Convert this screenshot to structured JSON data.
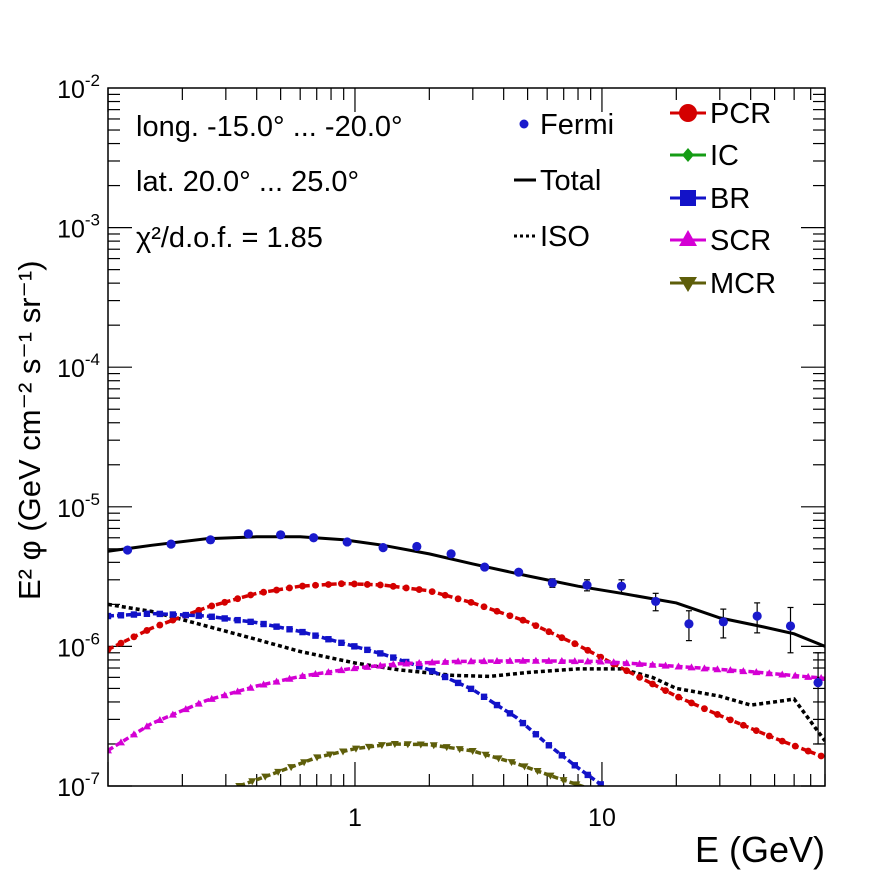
{
  "chart_data": {
    "type": "line",
    "title": "",
    "xlabel": "E (GeV)",
    "ylabel": "E² φ (GeV cm⁻² s⁻¹ sr⁻¹)",
    "xscale": "log",
    "yscale": "log",
    "xlim": [
      0.1,
      80
    ],
    "ylim": [
      1e-07,
      0.01
    ],
    "x_ticks": [
      {
        "value": 1,
        "label": "1"
      },
      {
        "value": 10,
        "label": "10"
      }
    ],
    "y_ticks": [
      {
        "value": 1e-07,
        "base": "10",
        "exp": "-7"
      },
      {
        "value": 1e-06,
        "base": "10",
        "exp": "-6"
      },
      {
        "value": 1e-05,
        "base": "10",
        "exp": "-5"
      },
      {
        "value": 0.0001,
        "base": "10",
        "exp": "-4"
      },
      {
        "value": 0.001,
        "base": "10",
        "exp": "-3"
      },
      {
        "value": 0.01,
        "base": "10",
        "exp": "-2"
      }
    ],
    "annotations": [
      {
        "id": "longitude",
        "text": "long. -15.0° ... -20.0°"
      },
      {
        "id": "latitude",
        "text": "lat. 20.0° ... 25.0°"
      },
      {
        "id": "chi2",
        "text": "χ²/d.o.f. = 1.85"
      }
    ],
    "legend": {
      "placement": "top-right",
      "entries": [
        {
          "label": "Fermi",
          "marker": "circle",
          "color": "#1a1acc"
        },
        {
          "label": "Total",
          "style": "solid",
          "color": "#000000"
        },
        {
          "label": "ISO",
          "style": "dotted",
          "color": "#000000"
        },
        {
          "label": "PCR",
          "marker": "circle",
          "color": "#d40000"
        },
        {
          "label": "IC",
          "marker": "diamond",
          "color": "#159c15"
        },
        {
          "label": "BR",
          "marker": "square",
          "color": "#1212c8"
        },
        {
          "label": "SCR",
          "marker": "triangle-up",
          "color": "#d400d4"
        },
        {
          "label": "MCR",
          "marker": "triangle-down",
          "color": "#5e5e0a"
        }
      ]
    },
    "fermi": {
      "name": "Fermi",
      "color": "#1a1acc",
      "points": [
        {
          "x": 0.12,
          "y": 4.9e-06,
          "err": 1e-07
        },
        {
          "x": 0.18,
          "y": 5.4e-06,
          "err": 1e-07
        },
        {
          "x": 0.26,
          "y": 5.8e-06,
          "err": 1e-07
        },
        {
          "x": 0.37,
          "y": 6.4e-06,
          "err": 1e-07
        },
        {
          "x": 0.5,
          "y": 6.3e-06,
          "err": 1e-07
        },
        {
          "x": 0.68,
          "y": 6e-06,
          "err": 1e-07
        },
        {
          "x": 0.93,
          "y": 5.6e-06,
          "err": 1e-07
        },
        {
          "x": 1.3,
          "y": 5.1e-06,
          "err": 1e-07
        },
        {
          "x": 1.78,
          "y": 5.2e-06,
          "err": 1e-07
        },
        {
          "x": 2.45,
          "y": 4.6e-06,
          "err": 1e-07
        },
        {
          "x": 3.35,
          "y": 3.7e-06,
          "err": 1e-07
        },
        {
          "x": 4.6,
          "y": 3.4e-06,
          "err": 1e-07
        },
        {
          "x": 6.3,
          "y": 2.85e-06,
          "err": 2e-07
        },
        {
          "x": 8.7,
          "y": 2.75e-06,
          "err": 2.5e-07
        },
        {
          "x": 12.0,
          "y": 2.7e-06,
          "err": 3e-07
        },
        {
          "x": 16.5,
          "y": 2.1e-06,
          "err": 3e-07
        },
        {
          "x": 22.5,
          "y": 1.45e-06,
          "err": 3.5e-07
        },
        {
          "x": 31.0,
          "y": 1.5e-06,
          "err": 3.5e-07
        },
        {
          "x": 42.5,
          "y": 1.65e-06,
          "err": 4e-07
        },
        {
          "x": 58.0,
          "y": 1.4e-06,
          "err": 5e-07
        },
        {
          "x": 75.0,
          "y": 5.5e-07,
          "err": 3.5e-07
        }
      ]
    },
    "series": [
      {
        "name": "Total",
        "color": "#000000",
        "style": "solid",
        "marker": "none",
        "x": [
          0.1,
          0.15,
          0.25,
          0.4,
          0.6,
          0.9,
          1.3,
          2.0,
          3.0,
          5.0,
          8.0,
          12,
          20,
          30,
          45,
          60,
          80
        ],
        "y": [
          4.8e-06,
          5.3e-06,
          5.9e-06,
          6.1e-06,
          6.1e-06,
          5.8e-06,
          5.3e-06,
          4.6e-06,
          3.9e-06,
          3.2e-06,
          2.7e-06,
          2.4e-06,
          2.05e-06,
          1.6e-06,
          1.38e-06,
          1.23e-06,
          1e-06
        ]
      },
      {
        "name": "ISO",
        "color": "#000000",
        "style": "dotted",
        "marker": "none",
        "x": [
          0.1,
          0.15,
          0.25,
          0.4,
          0.6,
          1.0,
          1.5,
          2.5,
          3.5,
          5.0,
          8.0,
          12,
          16,
          20,
          30,
          40,
          55,
          60,
          80
        ],
        "y": [
          2e-06,
          1.78e-06,
          1.4e-06,
          1.12e-06,
          9.2e-07,
          7.6e-07,
          6.8e-07,
          6.2e-07,
          6.1e-07,
          6.5e-07,
          6.9e-07,
          6.9e-07,
          6e-07,
          5e-07,
          4.4e-07,
          3.8e-07,
          4.1e-07,
          4.2e-07,
          2.1e-07
        ]
      },
      {
        "name": "PCR",
        "color": "#d40000",
        "style": "dashed",
        "marker": "circle",
        "x": [
          0.1,
          0.15,
          0.25,
          0.4,
          0.6,
          0.9,
          1.3,
          2.0,
          3.0,
          5.0,
          8.0,
          12,
          20,
          30,
          50,
          80
        ],
        "y": [
          9.5e-07,
          1.35e-06,
          1.9e-06,
          2.4e-06,
          2.7e-06,
          2.82e-06,
          2.75e-06,
          2.5e-06,
          2.05e-06,
          1.5e-06,
          1.02e-06,
          7e-07,
          4.4e-07,
          3.2e-07,
          2.2e-07,
          1.6e-07
        ]
      },
      {
        "name": "BR",
        "color": "#1212c8",
        "style": "dashed",
        "marker": "square",
        "x": [
          0.1,
          0.15,
          0.25,
          0.4,
          0.6,
          0.9,
          1.3,
          2.0,
          3.0,
          4.5,
          6.0,
          8.0,
          10.5
        ],
        "y": [
          1.65e-06,
          1.72e-06,
          1.65e-06,
          1.48e-06,
          1.28e-06,
          1.05e-06,
          8.8e-07,
          6.8e-07,
          4.9e-07,
          3.1e-07,
          2e-07,
          1.35e-07,
          9.5e-08
        ]
      },
      {
        "name": "SCR",
        "color": "#d400d4",
        "style": "dashed",
        "marker": "triangle-up",
        "x": [
          0.1,
          0.15,
          0.25,
          0.4,
          0.6,
          1.0,
          1.5,
          2.5,
          5.0,
          10,
          20,
          40,
          80
        ],
        "y": [
          1.8e-07,
          2.8e-07,
          4.1e-07,
          5.2e-07,
          6.1e-07,
          7e-07,
          7.5e-07,
          7.8e-07,
          7.9e-07,
          7.8e-07,
          7.2e-07,
          6.6e-07,
          5.9e-07
        ]
      },
      {
        "name": "MCR",
        "color": "#5e5e0a",
        "style": "dashed",
        "marker": "triangle-down",
        "x": [
          0.34,
          0.5,
          0.7,
          1.0,
          1.4,
          2.0,
          3.0,
          4.5,
          6.5,
          9.0
        ],
        "y": [
          1e-07,
          1.28e-07,
          1.6e-07,
          1.85e-07,
          2e-07,
          1.98e-07,
          1.78e-07,
          1.45e-07,
          1.15e-07,
          9.5e-08
        ]
      },
      {
        "name": "IC",
        "color": "#159c15",
        "style": "dashed",
        "marker": "diamond",
        "x": [],
        "y": []
      }
    ]
  }
}
